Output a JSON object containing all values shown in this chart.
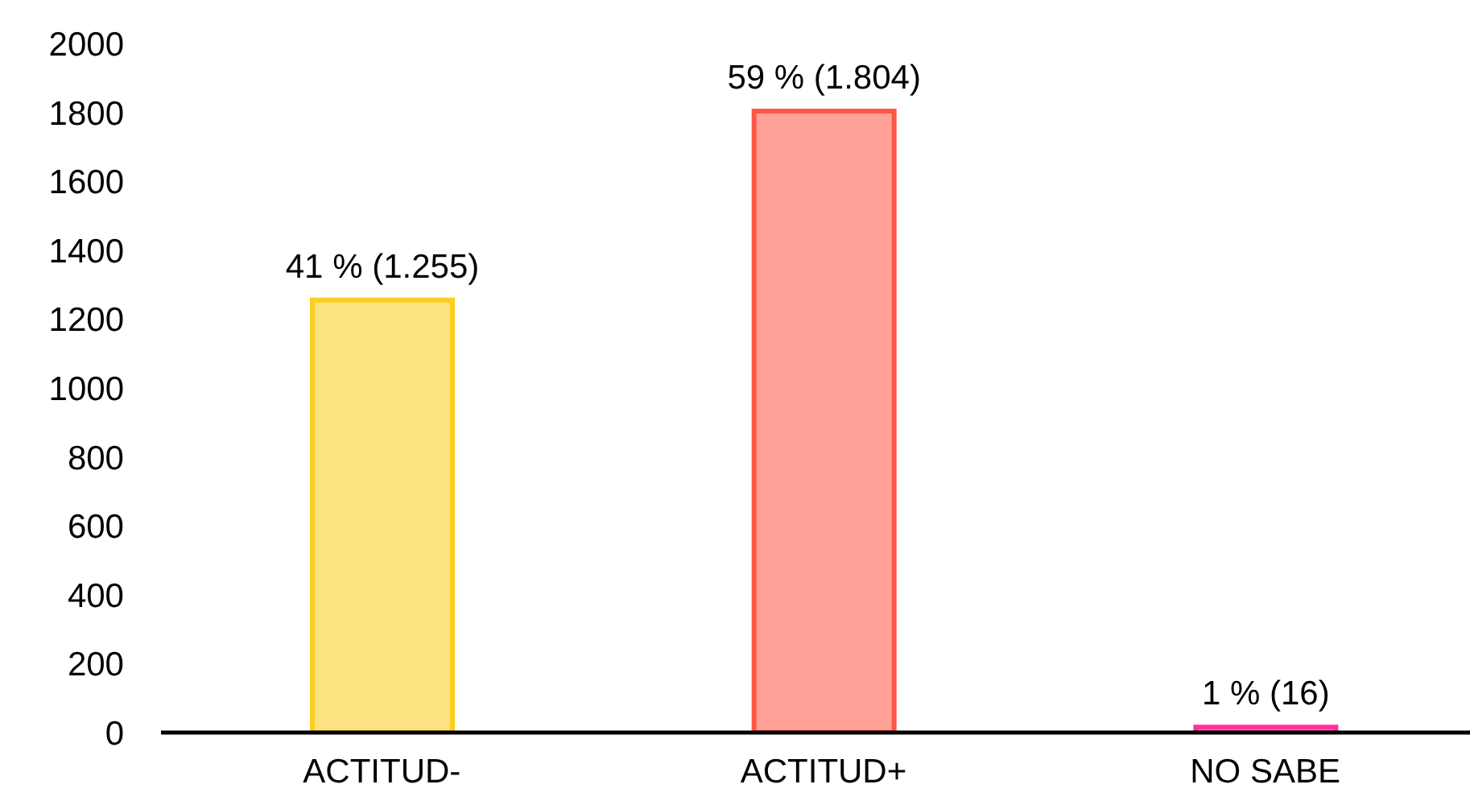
{
  "chart_data": {
    "type": "bar",
    "categories": [
      "ACTITUD-",
      "ACTITUD+",
      "NO SABE"
    ],
    "values": [
      1255,
      1804,
      16
    ],
    "colors": [
      "#fee383",
      "#ffa197",
      "#ff8cc8"
    ],
    "value_labels": [
      "41 % (1.255)",
      "59 % (1.804)",
      "1 % (16)"
    ],
    "ylim": [
      0,
      2000
    ],
    "yticks": [
      0,
      200,
      400,
      600,
      800,
      1000,
      1200,
      1400,
      1600,
      1800,
      2000
    ]
  }
}
